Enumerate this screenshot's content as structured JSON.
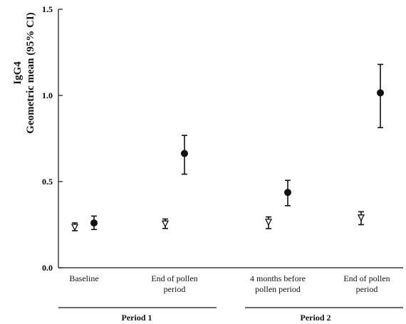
{
  "chart_data": {
    "type": "scatter",
    "ylabel": [
      "IgG4",
      "Geometric mean (95% CI)"
    ],
    "ylim": [
      0.0,
      1.5
    ],
    "yticks": [
      "0.0",
      "0.5",
      "1.0",
      "1.5"
    ],
    "categories": [
      "Baseline",
      "End of pollen period",
      "4 months before pollen period",
      "End of pollen period"
    ],
    "category_lines": [
      [
        "Baseline"
      ],
      [
        "End of pollen",
        "period"
      ],
      [
        "4 months before",
        "pollen period"
      ],
      [
        "End of pollen",
        "period"
      ]
    ],
    "groups": [
      {
        "label": "Period 1",
        "categories": [
          0,
          1
        ]
      },
      {
        "label": "Period 2",
        "categories": [
          2,
          3
        ]
      }
    ],
    "series": [
      {
        "marker": "open-triangle",
        "points": [
          {
            "mean": 0.235,
            "lower": 0.215,
            "upper": 0.26
          },
          {
            "mean": 0.255,
            "lower": 0.228,
            "upper": 0.283
          },
          {
            "mean": 0.265,
            "lower": 0.227,
            "upper": 0.295
          },
          {
            "mean": 0.29,
            "lower": 0.25,
            "upper": 0.325
          }
        ]
      },
      {
        "marker": "filled-circle",
        "points": [
          {
            "mean": 0.26,
            "lower": 0.222,
            "upper": 0.3
          },
          {
            "mean": 0.663,
            "lower": 0.543,
            "upper": 0.768
          },
          {
            "mean": 0.437,
            "lower": 0.36,
            "upper": 0.507
          },
          {
            "mean": 1.015,
            "lower": 0.813,
            "upper": 1.18
          }
        ]
      }
    ],
    "grid": false,
    "legend": "none"
  }
}
